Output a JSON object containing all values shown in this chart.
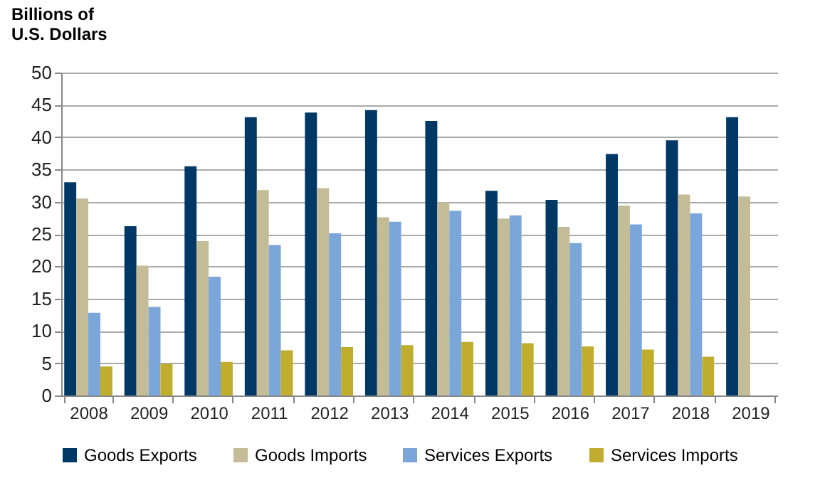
{
  "chart_data": {
    "type": "bar",
    "ylabel": "Billions of\nU.S. Dollars",
    "categories": [
      "2008",
      "2009",
      "2010",
      "2011",
      "2012",
      "2013",
      "2014",
      "2015",
      "2016",
      "2017",
      "2018",
      "2019"
    ],
    "series": [
      {
        "name": "Goods Exports",
        "color": "#003865",
        "values": [
          33,
          26.2,
          35.5,
          43.1,
          43.8,
          44.2,
          42.5,
          31.7,
          30.3,
          37.4,
          39.5,
          43.1
        ]
      },
      {
        "name": "Goods Imports",
        "color": "#c4bc96",
        "values": [
          30.5,
          20.1,
          23.9,
          31.8,
          32.1,
          27.6,
          29.9,
          27.4,
          26.1,
          29.4,
          31.1,
          30.8
        ]
      },
      {
        "name": "Services Exports",
        "color": "#7ba6d9",
        "values": [
          12.8,
          13.7,
          18.4,
          23.3,
          25.1,
          26.9,
          28.6,
          27.9,
          23.6,
          26.5,
          28.2,
          null
        ]
      },
      {
        "name": "Services Imports",
        "color": "#c0ad2d",
        "values": [
          4.5,
          4.9,
          5.2,
          7.0,
          7.5,
          7.8,
          8.3,
          8.1,
          7.6,
          7.1,
          6.0,
          null
        ]
      }
    ],
    "ylim": [
      0,
      50
    ],
    "yticks": [
      0,
      5,
      10,
      15,
      20,
      25,
      30,
      35,
      40,
      45,
      50
    ],
    "grid": "y",
    "legend": "bottom"
  }
}
